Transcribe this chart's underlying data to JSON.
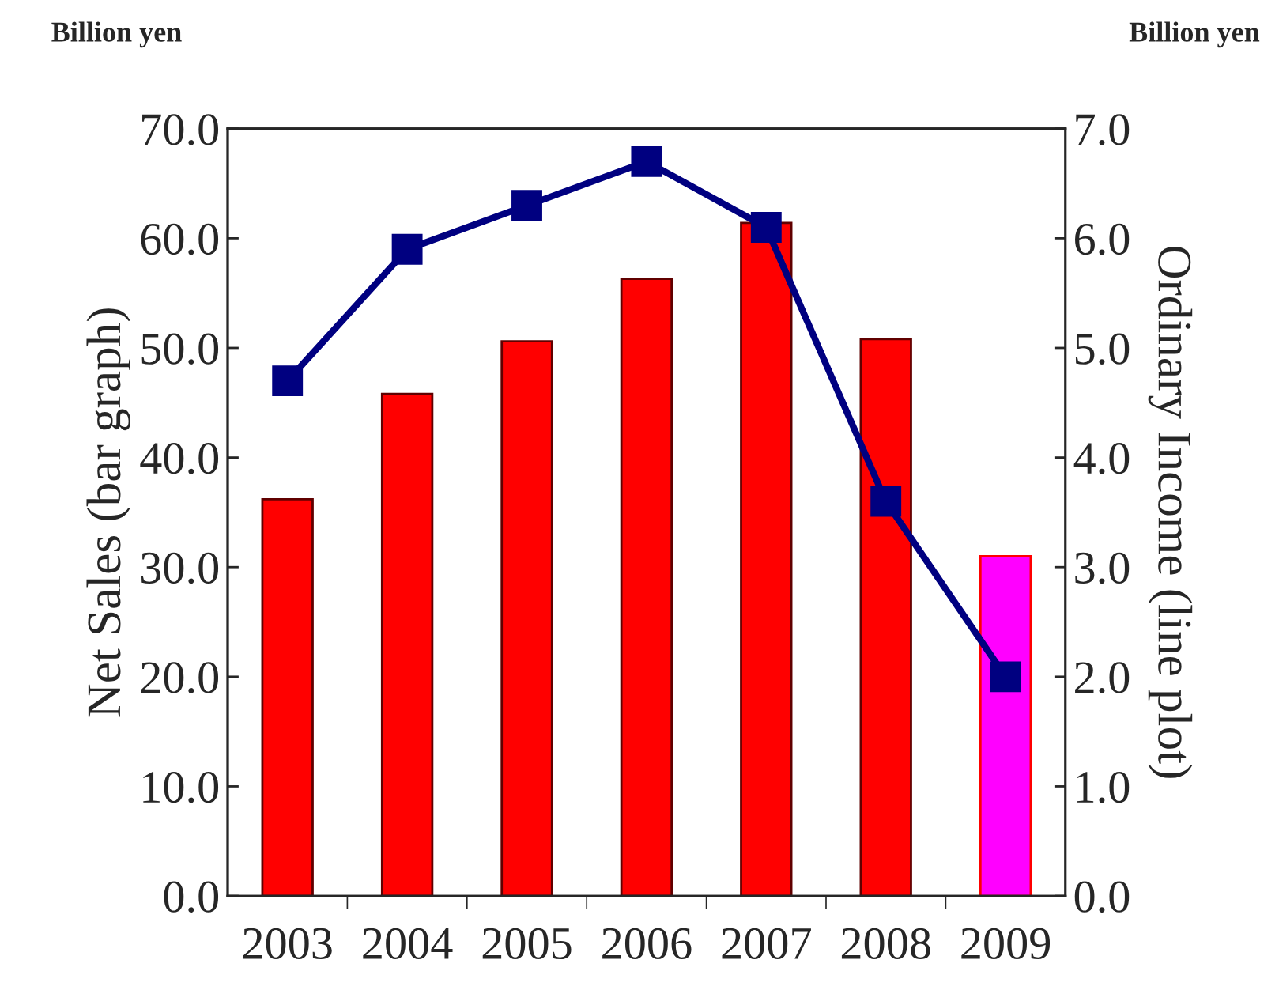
{
  "chart_data": {
    "type": "bar",
    "categories": [
      "2003",
      "2004",
      "2005",
      "2006",
      "2007",
      "2008",
      "2009"
    ],
    "series": [
      {
        "colors": [
          "#ff0000",
          "#ff0000",
          "#ff0000",
          "#ff0000",
          "#ff0000",
          "#ff0000",
          "#ff00ff"
        ],
        "values": [
          36.2,
          45.8,
          50.6,
          56.3,
          61.4,
          50.8,
          31.0
        ]
      },
      {
        "type": "line",
        "axis": "y2",
        "color": "#000080",
        "marker": "square",
        "line_style": "solid",
        "values": [
          4.7,
          5.9,
          6.3,
          6.7,
          6.1,
          3.6,
          2.0
        ]
      }
    ],
    "ylabel": "Net Sales (bar graph)",
    "y2label": "Ordinary Income (line plot)",
    "ylim": [
      0,
      70
    ],
    "yticks": [
      {
        "value": 0,
        "label": "0.0"
      },
      {
        "value": 10,
        "label": "10.0"
      },
      {
        "value": 20,
        "label": "20.0"
      },
      {
        "value": 30,
        "label": "30.0"
      },
      {
        "value": 40,
        "label": "40.0"
      },
      {
        "value": 50,
        "label": "50.0"
      },
      {
        "value": 60,
        "label": "60.0"
      },
      {
        "value": 70,
        "label": "70.0"
      }
    ],
    "y2lim": [
      0,
      7
    ],
    "y2ticks": [
      {
        "value": 0,
        "label": "0.0"
      },
      {
        "value": 1,
        "label": "1.0"
      },
      {
        "value": 2,
        "label": "2.0"
      },
      {
        "value": 3,
        "label": "3.0"
      },
      {
        "value": 4,
        "label": "4.0"
      },
      {
        "value": 5,
        "label": "5.0"
      },
      {
        "value": 6,
        "label": "6.0"
      },
      {
        "value": 7,
        "label": "7.0"
      }
    ],
    "annotations": [
      "Billion yen",
      "Billion yen"
    ],
    "grid": false
  }
}
